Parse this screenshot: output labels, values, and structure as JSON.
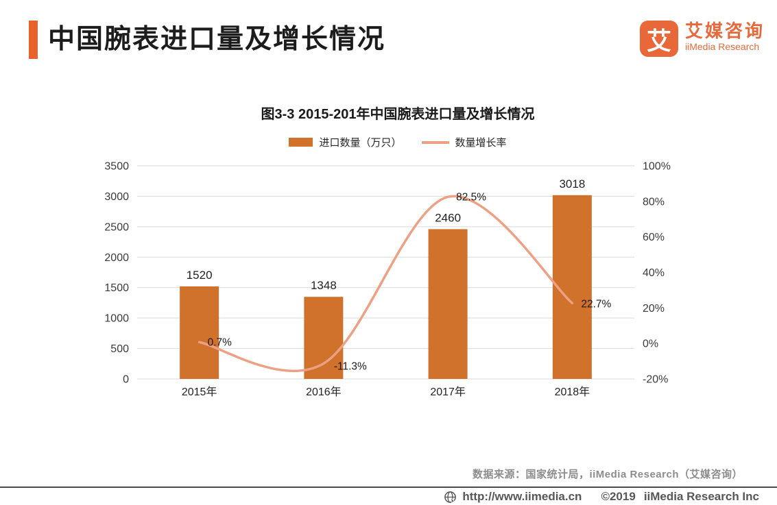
{
  "header": {
    "title": "中国腕表进口量及增长情况"
  },
  "logo": {
    "icon_char": "艾",
    "name_cn": "艾媒咨询",
    "name_en": "iiMedia Research"
  },
  "chart_data": {
    "type": "bar",
    "title": "图3-3 2015-201年中国腕表进口量及增长情况",
    "categories": [
      "2015年",
      "2016年",
      "2017年",
      "2018年"
    ],
    "series": [
      {
        "name": "进口数量（万只）",
        "kind": "bar",
        "axis": "left",
        "color": "#d0712c",
        "values": [
          1520,
          1348,
          2460,
          3018
        ]
      },
      {
        "name": "数量增长率",
        "kind": "line",
        "axis": "right",
        "color": "#eda184",
        "values": [
          0.7,
          -11.3,
          82.5,
          22.7
        ],
        "labels": [
          "0.7%",
          "-11.3%",
          "82.5%",
          "22.7%"
        ]
      }
    ],
    "left_axis": {
      "min": 0,
      "max": 3500,
      "ticks": [
        3500,
        3000,
        2500,
        2000,
        1500,
        1000,
        500,
        0
      ]
    },
    "right_axis": {
      "min": -20,
      "max": 100,
      "ticks": [
        "100%",
        "80%",
        "60%",
        "40%",
        "20%",
        "0%",
        "-20%"
      ],
      "tick_values": [
        100,
        80,
        60,
        40,
        20,
        0,
        -20
      ]
    },
    "xlabel": "",
    "ylabel": "",
    "legend_position": "top",
    "grid": true
  },
  "footer": {
    "source": "数据来源：国家统计局，iiMedia Research（艾媒咨询）",
    "url": "http://www.iimedia.cn",
    "copyright": "©2019",
    "company": "iiMedia Research Inc"
  },
  "theme": {
    "accent": "#e8632c",
    "bar": "#d0712c",
    "line": "#eda184",
    "logo": "#e8683a",
    "grid": "#d9d9d9",
    "text": "#262626",
    "muted": "#8c8c8c",
    "footer": "#575757",
    "divider": "#4a4a4a"
  }
}
